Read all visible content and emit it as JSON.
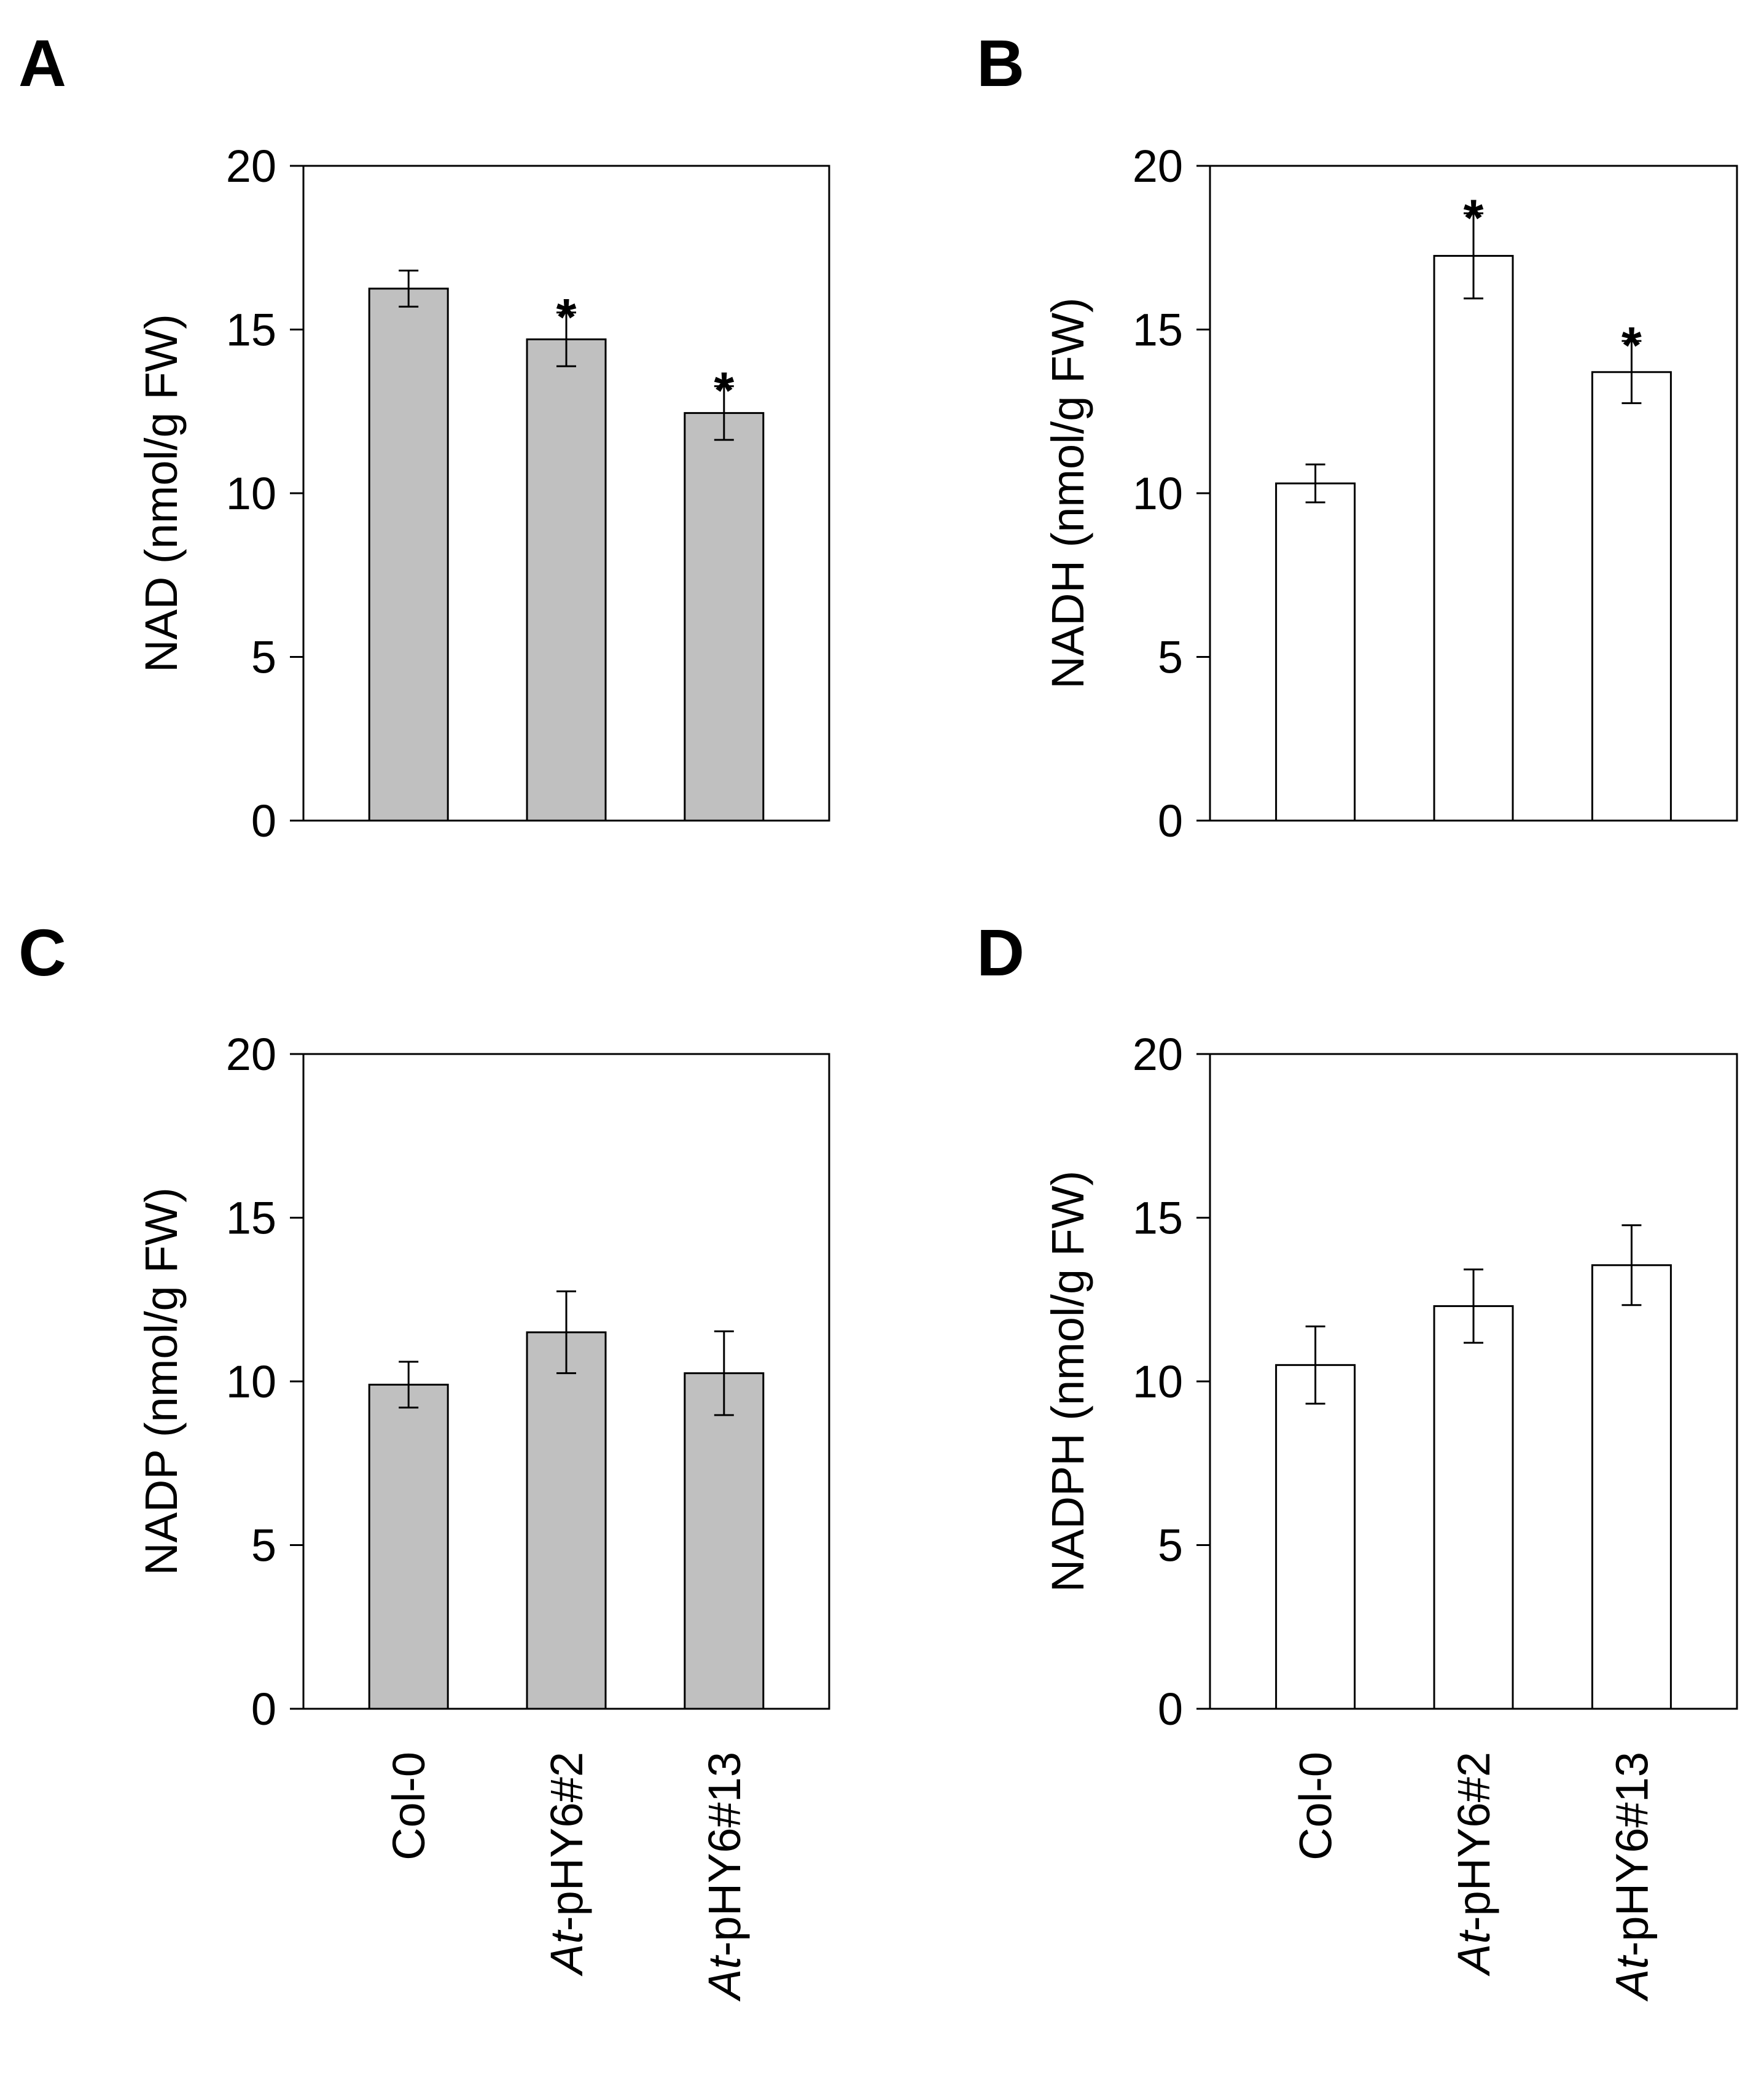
{
  "figure": {
    "background": "#ffffff",
    "axis_color": "#000000"
  },
  "chart_data": [
    {
      "panel": "A",
      "type": "bar",
      "categories": [
        "Col-0",
        "At-pHY6#2",
        "At-pHY6#13"
      ],
      "values": [
        16.25,
        14.7,
        12.45
      ],
      "errors": [
        0.55,
        0.82,
        0.82
      ],
      "significance": [
        "",
        "*",
        "*"
      ],
      "ylabel": "NAD (nmol/g FW)",
      "ylim": [
        0,
        20
      ],
      "yticks": [
        0,
        5,
        10,
        15,
        20
      ],
      "bar_color": "#c0c0c0",
      "show_xticklabels": false
    },
    {
      "panel": "B",
      "type": "bar",
      "categories": [
        "Col-0",
        "At-pHY6#2",
        "At-pHY6#13"
      ],
      "values": [
        10.3,
        17.25,
        13.7
      ],
      "errors": [
        0.58,
        1.3,
        0.95
      ],
      "significance": [
        "",
        "*",
        "*"
      ],
      "ylabel": "NADH (nmol/g FW)",
      "ylim": [
        0,
        20
      ],
      "yticks": [
        0,
        5,
        10,
        15,
        20
      ],
      "bar_color": "#ffffff",
      "show_xticklabels": false
    },
    {
      "panel": "C",
      "type": "bar",
      "categories": [
        "Col-0",
        "At-pHY6#2",
        "At-pHY6#13"
      ],
      "values": [
        9.9,
        11.5,
        10.25
      ],
      "errors": [
        0.7,
        1.25,
        1.28
      ],
      "significance": [
        "",
        "",
        ""
      ],
      "ylabel": "NADP (nmol/g FW)",
      "ylim": [
        0,
        20
      ],
      "yticks": [
        0,
        5,
        10,
        15,
        20
      ],
      "bar_color": "#c0c0c0",
      "show_xticklabels": true
    },
    {
      "panel": "D",
      "type": "bar",
      "categories": [
        "Col-0",
        "At-pHY6#2",
        "At-pHY6#13"
      ],
      "values": [
        10.5,
        12.3,
        13.55
      ],
      "errors": [
        1.18,
        1.12,
        1.22
      ],
      "significance": [
        "",
        "",
        ""
      ],
      "ylabel": "NADPH (nmol/g FW)",
      "ylim": [
        0,
        20
      ],
      "yticks": [
        0,
        5,
        10,
        15,
        20
      ],
      "bar_color": "#ffffff",
      "show_xticklabels": true
    }
  ]
}
